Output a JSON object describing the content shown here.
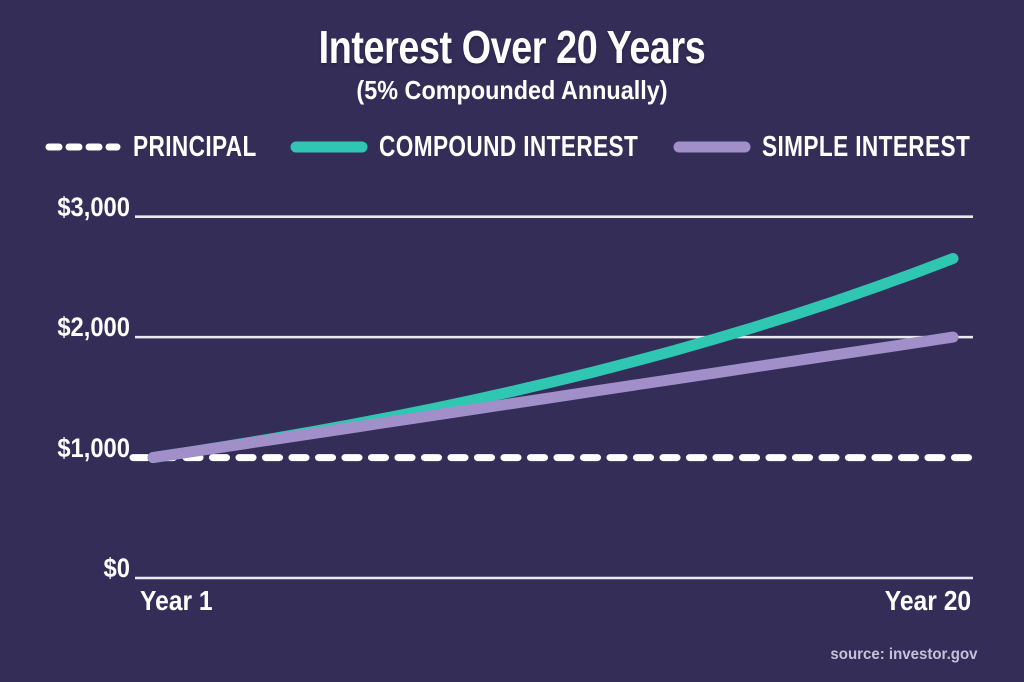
{
  "title": "Interest Over 20 Years",
  "subtitle": "(5% Compounded Annually)",
  "source_credit": "source: investor.gov",
  "colors": {
    "background": "#342d58",
    "principal": "#ffffff",
    "compound": "#30c7b2",
    "simple": "#a18fc9",
    "gridline": "#f4f3f8",
    "source_text": "#c6c1d9"
  },
  "legend": {
    "items": [
      {
        "label": "PRINCIPAL",
        "swatch": "dashed-line",
        "color": "#ffffff"
      },
      {
        "label": "COMPOUND INTEREST",
        "swatch": "solid-line",
        "color": "#30c7b2"
      },
      {
        "label": "SIMPLE INTEREST",
        "swatch": "solid-line",
        "color": "#a18fc9"
      }
    ]
  },
  "y_axis": {
    "tick_labels": [
      "$3,000",
      "$2,000",
      "$1,000",
      "$0"
    ],
    "tick_values": [
      3000,
      2000,
      1000,
      0
    ]
  },
  "x_axis": {
    "left_label": "Year 1",
    "right_label": "Year 20"
  },
  "chart_data": {
    "type": "line",
    "title": "Interest Over 20 Years",
    "subtitle": "(5% Compounded Annually)",
    "x": [
      0,
      1,
      2,
      3,
      4,
      5,
      6,
      7,
      8,
      9,
      10,
      11,
      12,
      13,
      14,
      15,
      16,
      17,
      18,
      19,
      20
    ],
    "x_tick_labels_shown": [
      "Year 1",
      "Year 20"
    ],
    "ylim": [
      0,
      3000
    ],
    "y_tick_labels": [
      "$3,000",
      "$2,000",
      "$1,000",
      "$0"
    ],
    "gridline_values": [
      3000,
      2000,
      0
    ],
    "legend_position": "top",
    "grid": "horizontal-only",
    "series": [
      {
        "name": "PRINCIPAL",
        "color": "#ffffff",
        "style": "dashed",
        "constant": 1000
      },
      {
        "name": "COMPOUND INTEREST",
        "color": "#30c7b2",
        "style": "solid",
        "values": [
          1000,
          1050,
          1103,
          1158,
          1216,
          1276,
          1340,
          1407,
          1477,
          1551,
          1629,
          1710,
          1796,
          1886,
          1980,
          2079,
          2183,
          2292,
          2407,
          2527,
          2653
        ]
      },
      {
        "name": "SIMPLE INTEREST",
        "color": "#a18fc9",
        "style": "solid",
        "values": [
          1000,
          1050,
          1100,
          1150,
          1200,
          1250,
          1300,
          1350,
          1400,
          1450,
          1500,
          1550,
          1600,
          1650,
          1700,
          1750,
          1800,
          1850,
          1900,
          1950,
          2000
        ]
      }
    ]
  }
}
